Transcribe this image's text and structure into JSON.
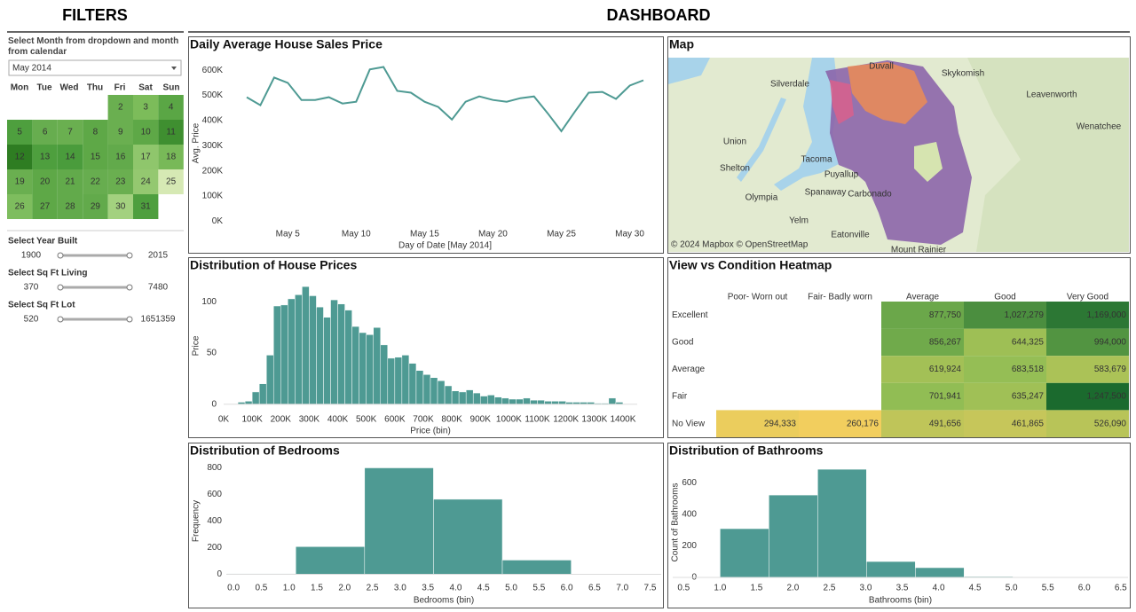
{
  "filters": {
    "title": "FILTERS",
    "instruction": "Select Month from dropdown and month from calendar",
    "month": "May 2014",
    "weekdays": [
      "Mon",
      "Tue",
      "Wed",
      "Thu",
      "Fri",
      "Sat",
      "Sun"
    ],
    "days": [
      2,
      3,
      4,
      5,
      6,
      7,
      8,
      9,
      10,
      11,
      12,
      13,
      14,
      15,
      16,
      17,
      18,
      19,
      20,
      21,
      22,
      23,
      24,
      25,
      26,
      27,
      28,
      29,
      30,
      31
    ],
    "day_colors": [
      "#6aaf50",
      "#7cbc5a",
      "#5aa645",
      "#4e9f3e",
      "#67ad4f",
      "#6aaf50",
      "#5ea847",
      "#6aaf50",
      "#5ea847",
      "#3f8f30",
      "#2e7d22",
      "#4e9f3e",
      "#4a9c3c",
      "#5ea847",
      "#62aa4b",
      "#8fc66c",
      "#78b958",
      "#6aaf50",
      "#5ea847",
      "#62aa4b",
      "#67ad4f",
      "#6aaf50",
      "#94c870",
      "#d6e9b4",
      "#7ebd5e",
      "#5ea847",
      "#62aa4b",
      "#62aa4b",
      "#a3d17f",
      "#4e9f3e"
    ],
    "sliders": [
      {
        "label": "Select Year Built",
        "min": 1900,
        "max": 2015
      },
      {
        "label": "Select Sq Ft Living",
        "min": 370,
        "max": 7480
      },
      {
        "label": "Select Sq Ft Lot",
        "min": 520,
        "max": 1651359
      }
    ]
  },
  "dashboard_title": "DASHBOARD",
  "map": {
    "title": "Map",
    "labels": [
      "Duvall",
      "Skykomish",
      "Silverdale",
      "Leavenworth",
      "Wenatchee",
      "Union",
      "Shelton",
      "Tacoma",
      "Puyallup",
      "Olympia",
      "Spanaway",
      "Carbonado",
      "Yelm",
      "Eatonville",
      "Mount Rainier"
    ],
    "attribution": "© 2024 Mapbox © OpenStreetMap"
  },
  "chart_data": [
    {
      "type": "line",
      "title": "Daily Average House Sales Price",
      "x_label": "Day of Date [May 2014]",
      "y_label": "Avg. Price",
      "color": "#4e9a93",
      "x": [
        2,
        3,
        4,
        5,
        6,
        7,
        8,
        9,
        10,
        11,
        12,
        13,
        14,
        15,
        16,
        17,
        18,
        19,
        20,
        21,
        22,
        23,
        24,
        25,
        26,
        27,
        28,
        29,
        30,
        31
      ],
      "values": [
        493000,
        461000,
        571000,
        550000,
        482000,
        482000,
        493000,
        468000,
        475000,
        603000,
        613000,
        518000,
        511000,
        475000,
        454000,
        404000,
        475000,
        496000,
        482000,
        475000,
        489000,
        496000,
        429000,
        358000,
        436000,
        511000,
        514000,
        486000,
        539000,
        560000
      ],
      "xlim": [
        0.7,
        32.3
      ],
      "xticks": [
        {
          "value": 5,
          "label": "May 5"
        },
        {
          "value": 10,
          "label": "May 10"
        },
        {
          "value": 15,
          "label": "May 15"
        },
        {
          "value": 20,
          "label": "May 20"
        },
        {
          "value": 25,
          "label": "May 25"
        },
        {
          "value": 30,
          "label": "May 30"
        }
      ],
      "ylim": [
        -30000,
        650000
      ],
      "yticks": [
        {
          "value": 0,
          "label": "0K"
        },
        {
          "value": 100000,
          "label": "100K"
        },
        {
          "value": 200000,
          "label": "200K"
        },
        {
          "value": 300000,
          "label": "300K"
        },
        {
          "value": 400000,
          "label": "400K"
        },
        {
          "value": 500000,
          "label": "500K"
        },
        {
          "value": 600000,
          "label": "600K"
        }
      ]
    },
    {
      "type": "histogram",
      "title": "Distribution of House Prices",
      "x_label": "Price (bin)",
      "y_label": "Price",
      "color": "#4e9a93",
      "bins": [
        50000,
        75000,
        100000,
        125000,
        150000,
        175000,
        200000,
        225000,
        250000,
        275000,
        300000,
        325000,
        350000,
        375000,
        400000,
        425000,
        450000,
        475000,
        500000,
        525000,
        550000,
        575000,
        600000,
        625000,
        650000,
        675000,
        700000,
        725000,
        750000,
        775000,
        800000,
        825000,
        850000,
        875000,
        900000,
        925000,
        950000,
        975000,
        1000000,
        1025000,
        1050000,
        1075000,
        1100000,
        1125000,
        1150000,
        1175000,
        1200000,
        1225000,
        1250000,
        1275000,
        1300000,
        1325000,
        1350000,
        1375000,
        1400000
      ],
      "values": [
        2,
        3,
        12,
        20,
        48,
        96,
        97,
        103,
        107,
        115,
        106,
        95,
        85,
        102,
        98,
        92,
        76,
        70,
        68,
        75,
        58,
        45,
        46,
        48,
        40,
        33,
        29,
        26,
        23,
        18,
        13,
        12,
        14,
        11,
        8,
        9,
        7,
        6,
        5,
        5,
        6,
        4,
        4,
        3,
        3,
        3,
        2,
        2,
        2,
        2,
        1,
        1,
        6,
        2
      ],
      "xlim": [
        0,
        1450000
      ],
      "xticks": [
        {
          "value": 0,
          "label": "0K"
        },
        {
          "value": 100000,
          "label": "100K"
        },
        {
          "value": 200000,
          "label": "200K"
        },
        {
          "value": 300000,
          "label": "300K"
        },
        {
          "value": 400000,
          "label": "400K"
        },
        {
          "value": 500000,
          "label": "500K"
        },
        {
          "value": 600000,
          "label": "600K"
        },
        {
          "value": 700000,
          "label": "700K"
        },
        {
          "value": 800000,
          "label": "800K"
        },
        {
          "value": 900000,
          "label": "900K"
        },
        {
          "value": 1000000,
          "label": "1000K"
        },
        {
          "value": 1100000,
          "label": "1100K"
        },
        {
          "value": 1200000,
          "label": "1200K"
        },
        {
          "value": 1300000,
          "label": "1300K"
        },
        {
          "value": 1400000,
          "label": "1400K"
        }
      ],
      "ylim": [
        -8,
        122
      ],
      "yticks": [
        0,
        50,
        100
      ]
    },
    {
      "type": "heatmap",
      "title": "View vs Condition Heatmap",
      "columns": [
        "Poor- Worn out",
        "Fair- Badly worn",
        "Average",
        "Good",
        "Very Good"
      ],
      "rows": [
        "Excellent",
        "Good",
        "Average",
        "Fair",
        "No View"
      ],
      "values": [
        [
          null,
          null,
          877750,
          1027279,
          1169000
        ],
        [
          null,
          null,
          856267,
          644325,
          994000
        ],
        [
          null,
          null,
          619924,
          683518,
          583679
        ],
        [
          null,
          null,
          701941,
          635247,
          1247500
        ],
        [
          294333,
          260176,
          491656,
          461865,
          526090
        ]
      ],
      "value_labels": [
        [
          null,
          null,
          "877,750",
          "1,027,279",
          "1,169,000"
        ],
        [
          null,
          null,
          "856,267",
          "644,325",
          "994,000"
        ],
        [
          null,
          null,
          "619,924",
          "683,518",
          "583,679"
        ],
        [
          null,
          null,
          "701,941",
          "635,247",
          "1,247,500"
        ],
        [
          "294,333",
          "260,176",
          "491,656",
          "461,865",
          "526,090"
        ]
      ],
      "colors": [
        "#f2ce5e",
        "#86bb53",
        "#1b6a2e"
      ]
    },
    {
      "type": "histogram",
      "title": "Distribution of Bedrooms",
      "x_label": "Bedrooms (bin)",
      "y_label": "Frequency",
      "color": "#4e9a93",
      "bins": [
        -0.12,
        1.12,
        2.36,
        3.6,
        4.84,
        6.08
      ],
      "values": [
        4,
        208,
        800,
        564,
        107
      ],
      "xlim": [
        -0.13,
        7.7
      ],
      "xticks": [
        {
          "value": 0,
          "label": "0.0"
        },
        0.5,
        {
          "value": 1,
          "label": "1.0"
        },
        1.5,
        {
          "value": 2,
          "label": "2.0"
        },
        2.5,
        {
          "value": 3,
          "label": "3.0"
        },
        3.5,
        {
          "value": 4,
          "label": "4.0"
        },
        4.5,
        {
          "value": 5,
          "label": "5.0"
        },
        5.5,
        {
          "value": 6,
          "label": "6.0"
        },
        6.5,
        {
          "value": 7,
          "label": "7.0"
        },
        7.5
      ],
      "ylim": [
        -50,
        850
      ],
      "yticks": [
        0,
        200,
        400,
        600,
        800
      ]
    },
    {
      "type": "histogram",
      "title": "Distribution of Bathrooms",
      "x_label": "Bathrooms (bin)",
      "y_label": "Count of Bathrooms",
      "color": "#4e9a93",
      "bins": [
        1.0,
        1.67,
        2.34,
        3.01,
        3.68,
        4.35,
        5.02
      ],
      "values": [
        309,
        522,
        685,
        101,
        62,
        6
      ],
      "xlim": [
        0.35,
        6.6
      ],
      "xticks": [
        0.5,
        {
          "value": 1,
          "label": "1.0"
        },
        1.5,
        {
          "value": 2,
          "label": "2.0"
        },
        2.5,
        {
          "value": 3,
          "label": "3.0"
        },
        3.5,
        {
          "value": 4,
          "label": "4.0"
        },
        4.5,
        {
          "value": 5,
          "label": "5.0"
        },
        5.5,
        {
          "value": 6,
          "label": "6.0"
        },
        6.5
      ],
      "ylim": [
        -39,
        736
      ],
      "yticks": [
        0,
        200,
        400,
        600
      ]
    }
  ]
}
